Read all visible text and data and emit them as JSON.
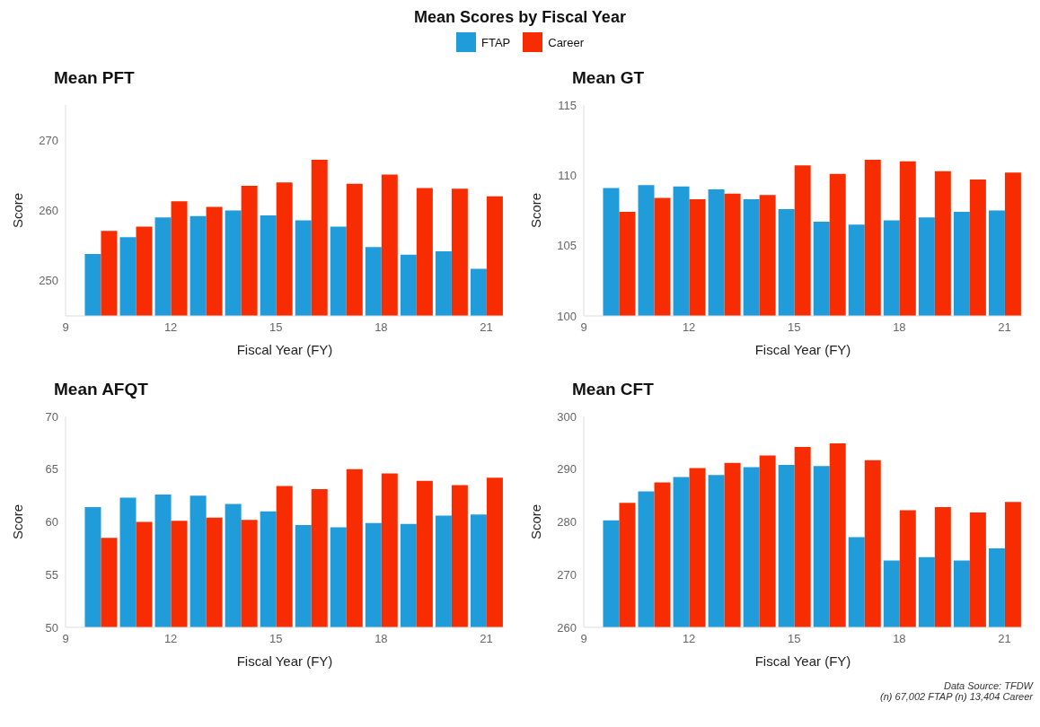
{
  "chart_data": [
    {
      "type": "bar",
      "title": "Mean PFT",
      "xlabel": "Fiscal Year (FY)",
      "ylabel": "Score",
      "annotations": [
        "Mean Scores by Fiscal Year"
      ],
      "legend": "top",
      "grid": false,
      "x": [
        10,
        11,
        12,
        13,
        14,
        15,
        16,
        17,
        18,
        19,
        20,
        21
      ],
      "xlim": [
        9,
        21.5
      ],
      "xticks": [
        9,
        12,
        15,
        18,
        21
      ],
      "ylim": [
        245,
        275
      ],
      "yticks": [
        250,
        260,
        270
      ],
      "series": [
        {
          "name": "FTAP",
          "color": "#209cdb",
          "values": [
            253.8,
            256.2,
            259.0,
            259.2,
            260.0,
            259.3,
            258.6,
            257.7,
            254.8,
            253.7,
            254.2,
            251.7
          ]
        },
        {
          "name": "Career",
          "color": "#f72c00",
          "values": [
            257.1,
            257.7,
            261.3,
            260.5,
            263.5,
            264.0,
            267.2,
            263.8,
            265.1,
            263.2,
            263.1,
            262.0
          ]
        }
      ]
    },
    {
      "type": "bar",
      "title": "Mean GT",
      "xlabel": "Fiscal Year (FY)",
      "ylabel": "Score",
      "grid": false,
      "x": [
        10,
        11,
        12,
        13,
        14,
        15,
        16,
        17,
        18,
        19,
        20,
        21
      ],
      "xlim": [
        9,
        21.5
      ],
      "xticks": [
        9,
        12,
        15,
        18,
        21
      ],
      "ylim": [
        100,
        115
      ],
      "yticks": [
        100,
        105,
        110,
        115
      ],
      "series": [
        {
          "color": "#209cdb",
          "values": [
            109.1,
            109.3,
            109.2,
            109.0,
            108.3,
            107.6,
            106.7,
            106.5,
            106.8,
            107.0,
            107.4,
            107.5
          ]
        },
        {
          "color": "#f72c00",
          "values": [
            107.4,
            108.4,
            108.3,
            108.7,
            108.6,
            110.7,
            110.1,
            111.1,
            111.0,
            110.3,
            109.7,
            110.2
          ]
        }
      ]
    },
    {
      "type": "bar",
      "title": "Mean AFQT",
      "xlabel": "Fiscal Year (FY)",
      "ylabel": "Score",
      "grid": false,
      "x": [
        10,
        11,
        12,
        13,
        14,
        15,
        16,
        17,
        18,
        19,
        20,
        21
      ],
      "xlim": [
        9,
        21.5
      ],
      "xticks": [
        9,
        12,
        15,
        18,
        21
      ],
      "ylim": [
        50,
        70
      ],
      "yticks": [
        50,
        55,
        60,
        65,
        70
      ],
      "series": [
        {
          "color": "#209cdb",
          "values": [
            61.4,
            62.3,
            62.6,
            62.5,
            61.7,
            61.0,
            59.7,
            59.5,
            59.9,
            59.8,
            60.6,
            60.7
          ]
        },
        {
          "color": "#f72c00",
          "values": [
            58.5,
            60.0,
            60.1,
            60.4,
            60.2,
            63.4,
            63.1,
            65.0,
            64.6,
            63.9,
            63.5,
            64.2
          ]
        }
      ]
    },
    {
      "type": "bar",
      "title": "Mean CFT",
      "xlabel": "Fiscal Year (FY)",
      "ylabel": "Score",
      "grid": false,
      "annotations": [
        "Data Source: TFDW",
        "(n) 67,002 FTAP (n) 13,404 Career"
      ],
      "x": [
        10,
        11,
        12,
        13,
        14,
        15,
        16,
        17,
        18,
        19,
        20,
        21
      ],
      "xlim": [
        9,
        21.5
      ],
      "xticks": [
        9,
        12,
        15,
        18,
        21
      ],
      "ylim": [
        260,
        300
      ],
      "yticks": [
        260,
        270,
        280,
        290,
        300
      ],
      "series": [
        {
          "color": "#209cdb",
          "values": [
            280.3,
            285.8,
            288.5,
            288.9,
            290.4,
            290.8,
            290.6,
            277.1,
            272.7,
            273.3,
            272.7,
            275.0
          ]
        },
        {
          "color": "#f72c00",
          "values": [
            283.6,
            287.5,
            290.2,
            291.2,
            292.6,
            294.2,
            294.9,
            291.7,
            282.2,
            282.8,
            281.8,
            283.8
          ]
        }
      ]
    }
  ]
}
